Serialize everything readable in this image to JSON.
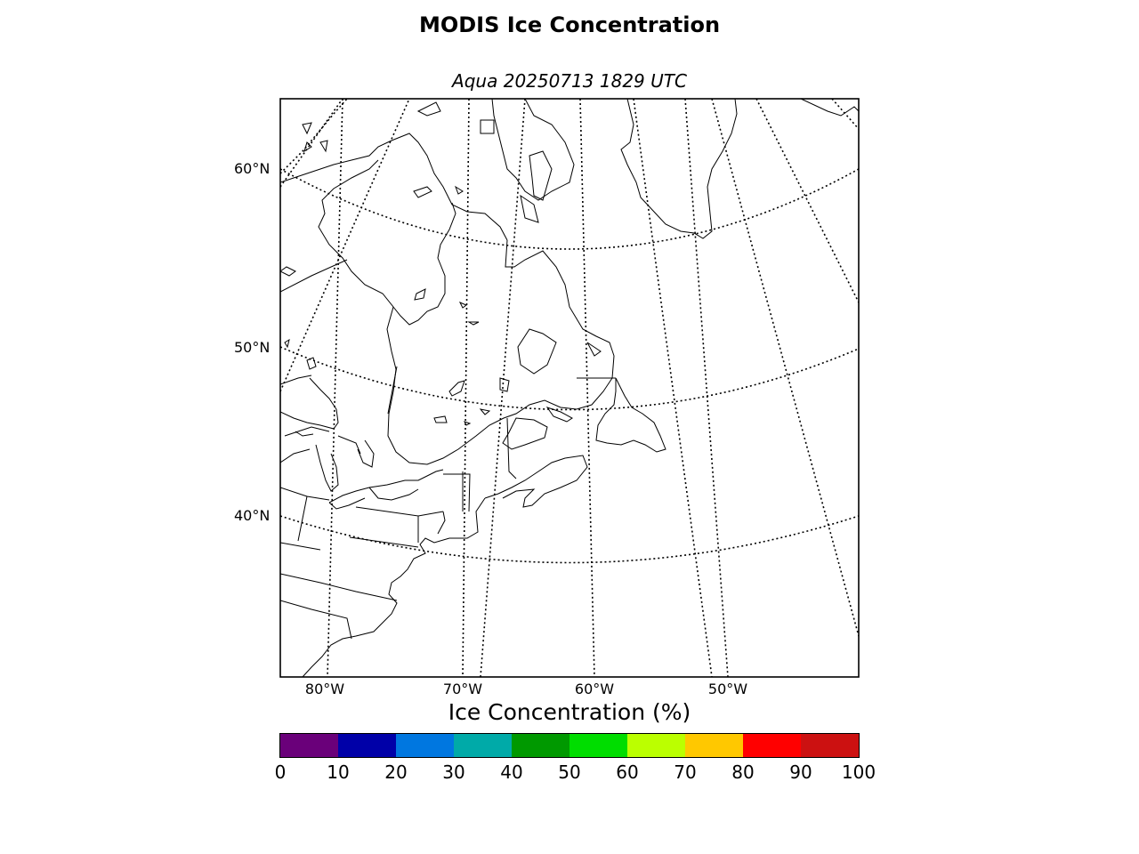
{
  "title": "MODIS Ice Concentration",
  "subtitle": "Aqua 20250713 1829 UTC",
  "map": {
    "projection": "lambert-conformal",
    "coastline_color": "#000000",
    "grid_style": "dotted",
    "lat_labels": [
      "60°N",
      "50°N",
      "40°N"
    ],
    "lon_labels": [
      "80°W",
      "70°W",
      "60°W",
      "50°W"
    ]
  },
  "colorbar": {
    "label": "Ice Concentration (%)",
    "ticks": [
      "0",
      "10",
      "20",
      "30",
      "40",
      "50",
      "60",
      "70",
      "80",
      "90",
      "100"
    ],
    "colors": [
      "#6a007a",
      "#0000a8",
      "#0077e0",
      "#00aaa8",
      "#009900",
      "#00dd00",
      "#bbff00",
      "#ffc800",
      "#ff0000",
      "#cc1111"
    ]
  }
}
